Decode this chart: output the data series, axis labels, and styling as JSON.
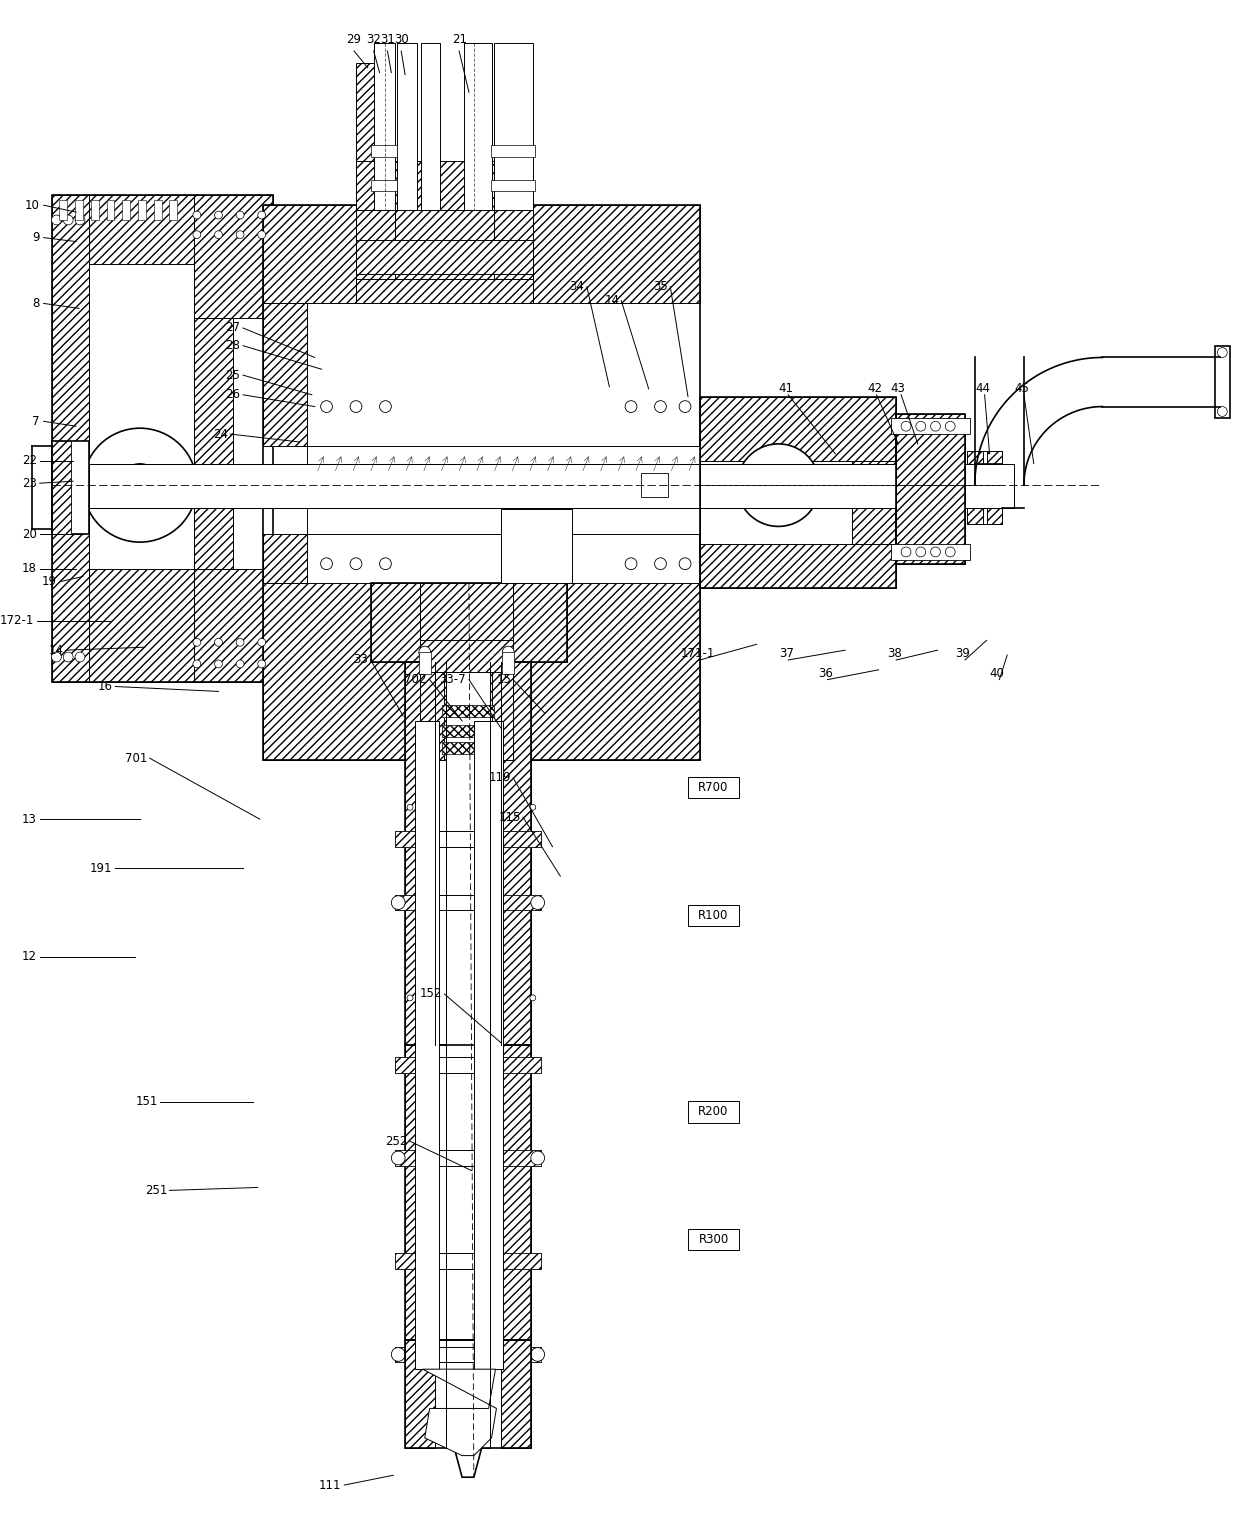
{
  "bg_color": "#ffffff",
  "line_color": "#000000",
  "figsize": [
    12.4,
    15.4
  ],
  "dpi": 100,
  "top_labels": [
    [
      "29",
      338,
      28
    ],
    [
      "32",
      358,
      28
    ],
    [
      "31",
      372,
      28
    ],
    [
      "30",
      386,
      28
    ],
    [
      "21",
      445,
      28
    ]
  ],
  "left_labels": [
    [
      "10",
      18,
      195
    ],
    [
      "9",
      18,
      228
    ],
    [
      "8",
      18,
      295
    ],
    [
      "7",
      18,
      415
    ],
    [
      "22",
      15,
      455
    ],
    [
      "23",
      15,
      478
    ],
    [
      "20",
      15,
      530
    ],
    [
      "18",
      15,
      565
    ],
    [
      "19",
      35,
      578
    ],
    [
      "172-1",
      12,
      618
    ],
    [
      "14",
      42,
      648
    ],
    [
      "16",
      92,
      685
    ],
    [
      "13",
      15,
      820
    ],
    [
      "191",
      92,
      870
    ],
    [
      "12",
      15,
      960
    ],
    [
      "151",
      138,
      1108
    ],
    [
      "251",
      148,
      1198
    ],
    [
      "111",
      325,
      1498
    ]
  ],
  "mid_labels": [
    [
      "27",
      222,
      320
    ],
    [
      "28",
      222,
      338
    ],
    [
      "25",
      222,
      368
    ],
    [
      "26",
      222,
      388
    ],
    [
      "24",
      210,
      428
    ],
    [
      "34",
      572,
      278
    ],
    [
      "14",
      608,
      292
    ],
    [
      "35",
      658,
      278
    ],
    [
      "33",
      352,
      658
    ],
    [
      "702",
      412,
      678
    ],
    [
      "33-7",
      452,
      678
    ],
    [
      "15",
      498,
      678
    ],
    [
      "701",
      128,
      758
    ],
    [
      "119",
      498,
      778
    ],
    [
      "115",
      508,
      818
    ],
    [
      "152",
      428,
      998
    ],
    [
      "252",
      392,
      1148
    ]
  ],
  "right_labels": [
    [
      "171-1",
      688,
      658
    ],
    [
      "41",
      778,
      388
    ],
    [
      "42",
      868,
      388
    ],
    [
      "43",
      892,
      388
    ],
    [
      "44",
      978,
      388
    ],
    [
      "45",
      1018,
      388
    ],
    [
      "37",
      778,
      658
    ],
    [
      "36",
      818,
      678
    ],
    [
      "38",
      888,
      658
    ],
    [
      "39",
      958,
      658
    ],
    [
      "40",
      992,
      678
    ]
  ],
  "radius_labels": [
    [
      "R700",
      678,
      788
    ],
    [
      "R100",
      678,
      918
    ],
    [
      "R200",
      678,
      1118
    ],
    [
      "R300",
      678,
      1248
    ]
  ]
}
